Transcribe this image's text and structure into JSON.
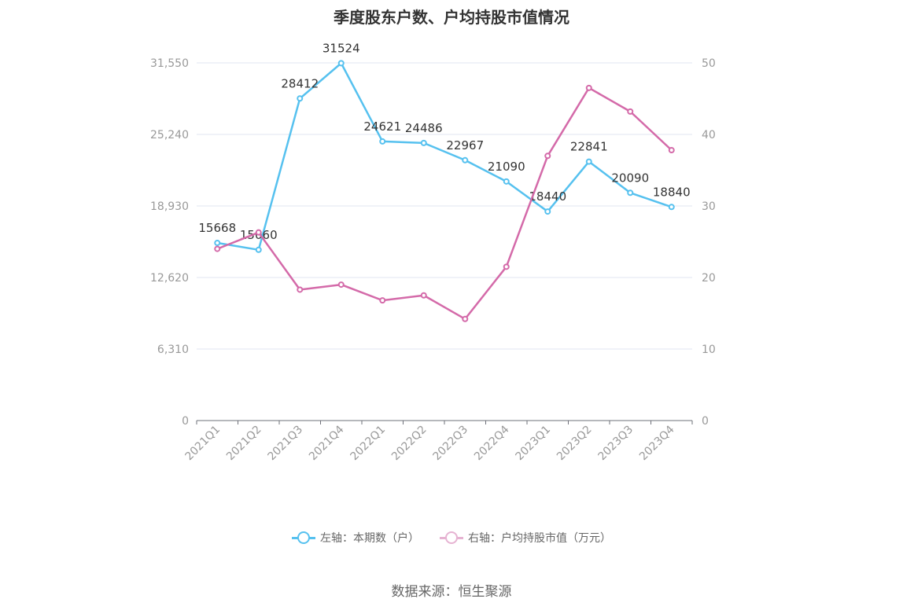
{
  "chart_data": {
    "type": "line",
    "title": "季度股东户数、户均持股市值情况",
    "categories": [
      "2021Q1",
      "2021Q2",
      "2021Q3",
      "2021Q4",
      "2022Q1",
      "2022Q2",
      "2022Q3",
      "2022Q4",
      "2023Q1",
      "2023Q2",
      "2023Q3",
      "2023Q4"
    ],
    "left_axis": {
      "ticks": [
        "0",
        "6,310",
        "12,620",
        "18,930",
        "25,240",
        "31,550"
      ],
      "range": [
        0,
        31550
      ]
    },
    "right_axis": {
      "ticks": [
        "0",
        "10",
        "20",
        "30",
        "40",
        "50"
      ],
      "range": [
        0,
        50
      ]
    },
    "series": [
      {
        "name": "左轴：本期数（户）",
        "axis": "left",
        "color": "#56c1ef",
        "values": [
          15668,
          15060,
          28412,
          31524,
          24621,
          24486,
          22967,
          21090,
          18440,
          22841,
          20090,
          18840
        ],
        "labels": [
          "15668",
          "15060",
          "28412",
          "31524",
          "24621",
          "24486",
          "22967",
          "21090",
          "18440",
          "22841",
          "20090",
          "18840"
        ]
      },
      {
        "name": "右轴：户均持股市值（万元）",
        "axis": "right",
        "color": "#d46aa9",
        "values": [
          24.0,
          26.3,
          18.3,
          19.0,
          16.8,
          17.5,
          14.2,
          21.5,
          37.0,
          46.5,
          43.2,
          37.8
        ]
      }
    ],
    "grid": true,
    "legend_position": "bottom"
  },
  "source": "数据来源：恒生聚源"
}
